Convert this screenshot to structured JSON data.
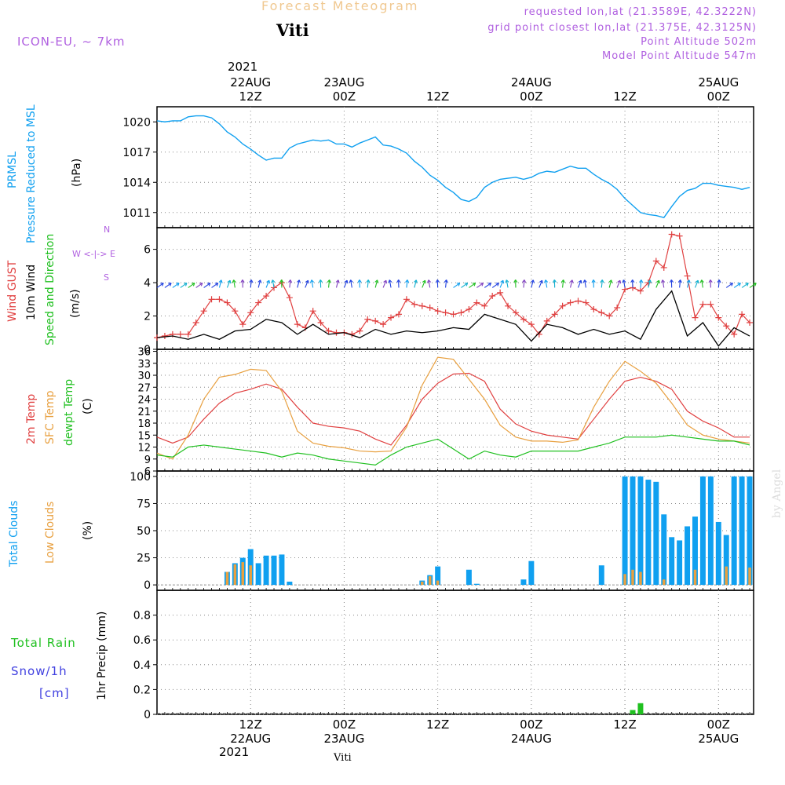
{
  "header": {
    "title": "Forecast Meteogram",
    "station": "Viti",
    "model": "ICON-EU, ~ 7km",
    "requested": "requested lon,lat (21.3589E, 42.3222N)",
    "grid_point": "grid point closest lon,lat (21.375E, 42.3125N)",
    "point_altitude": "Point Altitude 502m",
    "model_altitude": "Model Point Altitude 547m",
    "watermark": "by Angel",
    "footer_station": "Viti",
    "top_year": "2021",
    "bottom_year": "2021"
  },
  "time_axis": {
    "ticks": [
      {
        "x": 12,
        "label": "12Z",
        "date": "22AUG"
      },
      {
        "x": 24,
        "label": "00Z",
        "date": "23AUG"
      },
      {
        "x": 36,
        "label": "12Z",
        "date": ""
      },
      {
        "x": 48,
        "label": "00Z",
        "date": "24AUG"
      },
      {
        "x": 60,
        "label": "12Z",
        "date": ""
      },
      {
        "x": 72,
        "label": "00Z",
        "date": "25AUG"
      }
    ],
    "bottom_dates": [
      "22AUG",
      "23AUG",
      "24AUG",
      "25AUG"
    ]
  },
  "chart_data": [
    {
      "type": "line",
      "panel": "pressure",
      "labels": [
        "PRMSL",
        "Pressure Reduced to MSL"
      ],
      "ylabel": "(hPa)",
      "ylim": [
        1009.5,
        1021.5
      ],
      "yticks": [
        1011,
        1014,
        1017,
        1020
      ],
      "color": "#10a0f0",
      "x": [
        0,
        1,
        2,
        3,
        4,
        5,
        6,
        7,
        8,
        9,
        10,
        11,
        12,
        13,
        14,
        15,
        16,
        17,
        18,
        19,
        20,
        21,
        22,
        23,
        24,
        25,
        26,
        27,
        28,
        29,
        30,
        31,
        32,
        33,
        34,
        35,
        36,
        37,
        38,
        39,
        40,
        41,
        42,
        43,
        44,
        45,
        46,
        47,
        48,
        49,
        50,
        51,
        52,
        53,
        54,
        55,
        56,
        57,
        58,
        59,
        60,
        61,
        62,
        63,
        64,
        65,
        66,
        67,
        68,
        69,
        70,
        71,
        72,
        73,
        74,
        75,
        76
      ],
      "values": [
        1020.1,
        1020.0,
        1020.1,
        1020.1,
        1020.5,
        1020.6,
        1020.6,
        1020.4,
        1019.8,
        1019.0,
        1018.5,
        1017.8,
        1017.3,
        1016.7,
        1016.2,
        1016.4,
        1016.4,
        1017.4,
        1017.8,
        1018.0,
        1018.2,
        1018.1,
        1018.2,
        1017.8,
        1017.8,
        1017.5,
        1017.9,
        1018.2,
        1018.5,
        1017.7,
        1017.6,
        1017.3,
        1016.9,
        1016.1,
        1015.5,
        1014.7,
        1014.2,
        1013.5,
        1013.0,
        1012.3,
        1012.1,
        1012.5,
        1013.5,
        1014.0,
        1014.3,
        1014.4,
        1014.5,
        1014.3,
        1014.5,
        1014.9,
        1015.1,
        1015.0,
        1015.3,
        1015.6,
        1015.4,
        1015.4,
        1014.8,
        1014.3,
        1013.9,
        1013.3,
        1012.4,
        1011.7,
        1011.0,
        1010.8,
        1010.7,
        1010.5,
        1011.6,
        1012.6,
        1013.2,
        1013.4,
        1013.9,
        1013.9,
        1013.7,
        1013.6,
        1013.5,
        1013.3,
        1013.5
      ]
    },
    {
      "type": "line",
      "panel": "wind",
      "labels": [
        "Wind GUST",
        "10m Wind",
        "Speed and Direction"
      ],
      "ylabel": "(m/s)",
      "compass": [
        "N",
        "S",
        "W <-|-> E"
      ],
      "ylim": [
        0,
        7.3
      ],
      "yticks": [
        0,
        2,
        4,
        6
      ],
      "series": [
        {
          "name": "Wind GUST",
          "color": "#e04040",
          "x": [
            0,
            1,
            2,
            3,
            4,
            5,
            6,
            7,
            8,
            9,
            10,
            11,
            12,
            13,
            14,
            15,
            16,
            17,
            18,
            19,
            20,
            21,
            22,
            23,
            24,
            25,
            26,
            27,
            28,
            29,
            30,
            31,
            32,
            33,
            34,
            35,
            36,
            37,
            38,
            39,
            40,
            41,
            42,
            43,
            44,
            45,
            46,
            47,
            48,
            49,
            50,
            51,
            52,
            53,
            54,
            55,
            56,
            57,
            58,
            59,
            60,
            61,
            62,
            63,
            64,
            65,
            66,
            67,
            68,
            69,
            70,
            71,
            72,
            73,
            74,
            75,
            76
          ],
          "values": [
            0.7,
            0.8,
            0.9,
            0.9,
            0.9,
            1.6,
            2.3,
            3.0,
            3.0,
            2.8,
            2.3,
            1.5,
            2.2,
            2.8,
            3.2,
            3.7,
            4.0,
            3.1,
            1.5,
            1.3,
            2.3,
            1.6,
            1.1,
            1.0,
            1.0,
            0.9,
            1.1,
            1.8,
            1.7,
            1.5,
            1.9,
            2.1,
            3.0,
            2.7,
            2.6,
            2.5,
            2.3,
            2.2,
            2.1,
            2.2,
            2.4,
            2.8,
            2.6,
            3.2,
            3.4,
            2.6,
            2.2,
            1.8,
            1.5,
            0.9,
            1.7,
            2.1,
            2.6,
            2.8,
            2.9,
            2.8,
            2.4,
            2.2,
            2.0,
            2.5,
            3.6,
            3.7,
            3.5,
            4.0,
            5.3,
            4.9,
            6.9,
            6.8,
            4.4,
            1.9,
            2.7,
            2.7,
            1.9,
            1.4,
            0.9,
            2.1,
            1.6
          ]
        },
        {
          "name": "10m Wind",
          "color": "#000000",
          "x": [
            0,
            2,
            4,
            6,
            8,
            10,
            12,
            14,
            16,
            18,
            20,
            22,
            24,
            26,
            28,
            30,
            32,
            34,
            36,
            38,
            40,
            42,
            44,
            46,
            48,
            50,
            52,
            54,
            56,
            58,
            60,
            62,
            64,
            66,
            68,
            70,
            72,
            74,
            76
          ],
          "values": [
            0.7,
            0.8,
            0.6,
            0.9,
            0.6,
            1.1,
            1.2,
            1.8,
            1.6,
            0.9,
            1.5,
            0.9,
            1.0,
            0.7,
            1.2,
            0.9,
            1.1,
            1.0,
            1.1,
            1.3,
            1.2,
            2.1,
            1.8,
            1.5,
            0.5,
            1.5,
            1.3,
            0.9,
            1.2,
            0.9,
            1.1,
            0.6,
            2.4,
            3.5,
            0.8,
            1.6,
            0.2,
            1.3,
            0.8
          ]
        }
      ]
    },
    {
      "type": "line",
      "panel": "temperature",
      "labels": [
        "2m Temp",
        "SFC Temp",
        "dewpt Temp"
      ],
      "ylabel": "(C)",
      "ylim": [
        6,
        36.5
      ],
      "yticks": [
        6,
        9,
        12,
        15,
        18,
        21,
        24,
        27,
        30,
        33,
        36
      ],
      "series": [
        {
          "name": "2m Temp",
          "color": "#e04040",
          "x": [
            0,
            2,
            4,
            6,
            8,
            10,
            12,
            14,
            16,
            18,
            20,
            22,
            24,
            26,
            28,
            30,
            32,
            34,
            36,
            38,
            40,
            42,
            44,
            46,
            48,
            50,
            52,
            54,
            56,
            58,
            60,
            62,
            64,
            66,
            68,
            70,
            72,
            74,
            76
          ],
          "values": [
            14.5,
            13.0,
            14.5,
            19.0,
            23.0,
            25.5,
            26.5,
            27.8,
            26.5,
            22.0,
            18.0,
            17.2,
            16.8,
            16.0,
            14.0,
            12.5,
            17.5,
            24.0,
            28.0,
            30.3,
            30.5,
            28.5,
            21.5,
            17.8,
            16.0,
            15.0,
            14.5,
            14.0,
            19.0,
            24.0,
            28.5,
            29.5,
            28.5,
            26.5,
            21.0,
            18.5,
            16.8,
            14.5,
            14.5
          ]
        },
        {
          "name": "SFC Temp",
          "color": "#e8a040",
          "x": [
            0,
            2,
            4,
            6,
            8,
            10,
            12,
            14,
            16,
            18,
            20,
            22,
            24,
            26,
            28,
            30,
            32,
            34,
            36,
            38,
            40,
            42,
            44,
            46,
            48,
            50,
            52,
            54,
            56,
            58,
            60,
            62,
            64,
            66,
            68,
            70,
            72,
            74,
            76
          ],
          "values": [
            10.5,
            9.0,
            15.0,
            24.0,
            29.5,
            30.2,
            31.5,
            31.2,
            26.0,
            16.0,
            13.0,
            12.2,
            11.8,
            11.0,
            10.8,
            11.0,
            17.0,
            27.5,
            34.5,
            34.0,
            29.0,
            24.0,
            17.5,
            14.5,
            13.5,
            13.5,
            13.2,
            13.8,
            22.0,
            28.5,
            33.5,
            31.0,
            28.0,
            23.0,
            17.5,
            15.0,
            14.0,
            13.5,
            13.0
          ]
        },
        {
          "name": "dewpt Temp",
          "color": "#20c020",
          "x": [
            0,
            2,
            4,
            6,
            8,
            10,
            12,
            14,
            16,
            18,
            20,
            22,
            24,
            26,
            28,
            30,
            32,
            34,
            36,
            38,
            40,
            42,
            44,
            46,
            48,
            50,
            52,
            54,
            56,
            58,
            60,
            62,
            64,
            66,
            68,
            70,
            72,
            74,
            76
          ],
          "values": [
            10.0,
            9.5,
            12.0,
            12.5,
            12.0,
            11.5,
            11.0,
            10.5,
            9.5,
            10.5,
            10.0,
            9.0,
            8.5,
            8.0,
            7.5,
            10.0,
            12.0,
            13.0,
            14.0,
            11.5,
            9.0,
            11.0,
            10.0,
            9.5,
            11.0,
            11.0,
            11.0,
            11.0,
            12.0,
            13.0,
            14.5,
            14.5,
            14.5,
            15.0,
            14.5,
            14.0,
            13.5,
            13.5,
            12.5
          ]
        }
      ]
    },
    {
      "type": "bar",
      "panel": "clouds",
      "labels": [
        "Total Clouds",
        "Low Clouds"
      ],
      "ylabel": "(%)",
      "ylim": [
        -5,
        105
      ],
      "yticks": [
        0,
        25,
        50,
        75,
        100
      ],
      "series": [
        {
          "name": "Total Clouds",
          "color": "#10a0f0",
          "x": [
            9,
            10,
            11,
            12,
            13,
            14,
            15,
            16,
            17,
            34,
            35,
            36,
            40,
            41,
            47,
            48,
            57,
            60,
            61,
            62,
            63,
            64,
            65,
            66,
            67,
            68,
            69,
            70,
            71,
            72,
            73,
            74,
            75,
            76
          ],
          "values": [
            12,
            20,
            25,
            33,
            20,
            27,
            27,
            28,
            3,
            4,
            9,
            17,
            14,
            1,
            5,
            22,
            18,
            100,
            100,
            100,
            97,
            95,
            65,
            44,
            41,
            54,
            63,
            100,
            100,
            58,
            46,
            100,
            100,
            100
          ]
        },
        {
          "name": "Low Clouds",
          "color": "#e8a040",
          "x": [
            9,
            10,
            11,
            12,
            13,
            14,
            15,
            16,
            17,
            34,
            35,
            36,
            40,
            41,
            47,
            48,
            57,
            60,
            61,
            62,
            63,
            64,
            65,
            66,
            67,
            68,
            69,
            70,
            71,
            72,
            73,
            74,
            75,
            76
          ],
          "values": [
            12,
            19,
            21,
            18,
            0,
            0,
            0,
            0,
            0,
            3,
            8,
            4,
            0,
            0,
            0,
            0,
            0,
            10,
            14,
            12,
            0,
            0,
            5,
            0,
            0,
            0,
            14,
            0,
            0,
            0,
            17,
            0,
            0,
            16
          ]
        }
      ]
    },
    {
      "type": "bar",
      "panel": "precipitation",
      "labels": [
        "Total Rain",
        "Snow/1h",
        "[cm]"
      ],
      "ylabel": "1hr Precip (mm)",
      "ylim": [
        0,
        1.0
      ],
      "yticks": [
        0,
        0.2,
        0.4,
        0.6,
        0.8
      ],
      "series": [
        {
          "name": "Total Rain",
          "color": "#20c020",
          "x": [
            61,
            62
          ],
          "values": [
            0.035,
            0.09
          ]
        }
      ]
    }
  ]
}
